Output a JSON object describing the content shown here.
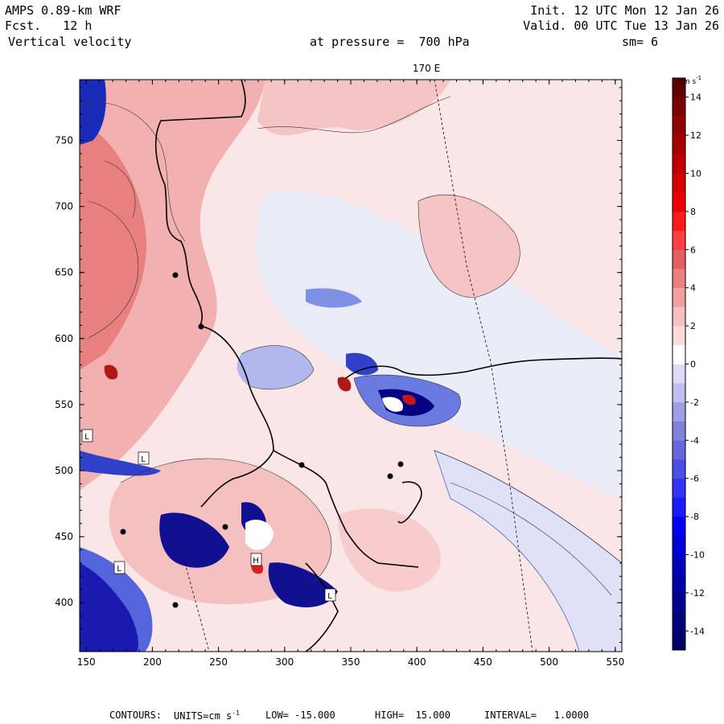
{
  "header": {
    "model": "AMPS 0.89-km WRF",
    "forecast": "Fcst.   12 h",
    "field": "Vertical velocity",
    "init": "Init. 12 UTC Mon 12 Jan 26",
    "valid": "Valid. 00 UTC Tue 13 Jan 26",
    "pressure": "at pressure =  700 hPa",
    "smoothing": "sm= 6"
  },
  "footer": {
    "contours_label": "CONTOURS:",
    "units_label": "UNITS=cm s",
    "units_exp": "-1",
    "low": "LOW= -15.000",
    "high": "HIGH=  15.000",
    "interval": "INTERVAL=   1.0000"
  },
  "colors": {
    "strong_neg": "#000080",
    "neg": "#4a5ed6",
    "weak_neg": "#e6e8f8",
    "weak_pos": "#fae0e0",
    "pos": "#e88080",
    "strong_pos": "#b01818",
    "coast": "#000000"
  },
  "chart_data": {
    "type": "heatmap",
    "title": "Vertical velocity at pressure = 700 hPa",
    "units": "cm s-1",
    "longitude_label": "170 E",
    "x_range": [
      145,
      555
    ],
    "y_range": [
      363,
      796
    ],
    "x_ticks": [
      150,
      200,
      250,
      300,
      350,
      400,
      450,
      500,
      550
    ],
    "y_ticks": [
      400,
      450,
      500,
      550,
      600,
      650,
      700,
      750
    ],
    "colorbar": {
      "label": "cm s",
      "label_exp": "-1",
      "levels": [
        -15,
        -14,
        -13,
        -12,
        -11,
        -10,
        -9,
        -8,
        -7,
        -6,
        -5,
        -4,
        -3,
        -2,
        -1,
        0,
        1,
        2,
        3,
        4,
        5,
        6,
        7,
        8,
        9,
        10,
        11,
        12,
        13,
        14,
        15
      ],
      "tick_labels": [
        "14",
        "12",
        "10",
        "8",
        "6",
        "4",
        "2",
        "0",
        "-2",
        "-4",
        "-6",
        "-8",
        "-10",
        "-12",
        "-14"
      ],
      "colors_low_to_high": [
        "#000066",
        "#00007a",
        "#00008e",
        "#0000a6",
        "#0000bd",
        "#0000d6",
        "#0000f0",
        "#1a1aff",
        "#3333f5",
        "#4d4de8",
        "#6666dd",
        "#8080dd",
        "#9f9fe6",
        "#bebef0",
        "#dcdcf7",
        "#ffffff",
        "#fadcdc",
        "#f5c0c0",
        "#f0a0a0",
        "#ea8080",
        "#e46060",
        "#ff4040",
        "#ff1a1a",
        "#f00000",
        "#d80000",
        "#c00000",
        "#a80000",
        "#900000",
        "#780000",
        "#600000"
      ]
    },
    "extrema_labels": [
      "L",
      "L",
      "L",
      "H",
      "L"
    ]
  }
}
